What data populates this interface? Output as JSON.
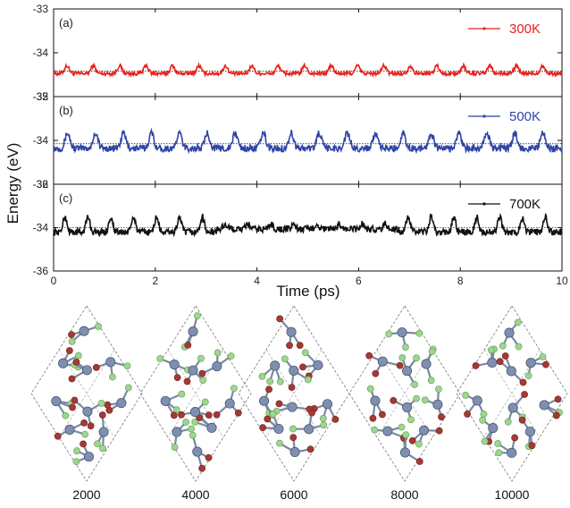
{
  "chart_data": {
    "type": "line",
    "xlabel": "Time (ps)",
    "ylabel": "Energy (eV)",
    "xlim": [
      0,
      10
    ],
    "x_ticks": [
      "0",
      "2",
      "4",
      "6",
      "8",
      "10"
    ],
    "panels": [
      {
        "label": "(a)",
        "ylim": [
          -35,
          -33
        ],
        "y_ticks": [
          "-33",
          "-34",
          "-35"
        ],
        "series": [
          {
            "name": "300K",
            "color": "#e8211c",
            "mean": -34.42,
            "amplitude": 0.18,
            "period_ps": 0.52,
            "values_note": ""
          }
        ],
        "reference_line": -34.42
      },
      {
        "label": "(b)",
        "ylim": [
          -36,
          -32
        ],
        "y_ticks": [
          "-32",
          "-34",
          "-36"
        ],
        "series": [
          {
            "name": "500K",
            "color": "#2f44a8",
            "mean": -34.15,
            "amplitude": 0.7,
            "period_ps": 0.55,
            "values_note": ""
          }
        ],
        "reference_line": -34.15
      },
      {
        "label": "(c)",
        "ylim": [
          -36,
          -32
        ],
        "y_ticks": [
          "-32",
          "-34",
          "-36"
        ],
        "series": [
          {
            "name": "700K",
            "color": "#111111",
            "mean": -34.0,
            "amplitude": 0.7,
            "period_ps": 0.45,
            "values_note": ""
          }
        ],
        "reference_line": -34.0
      }
    ]
  },
  "snapshots": {
    "labels": [
      "2000",
      "4000",
      "6000",
      "8000",
      "10000"
    ]
  }
}
